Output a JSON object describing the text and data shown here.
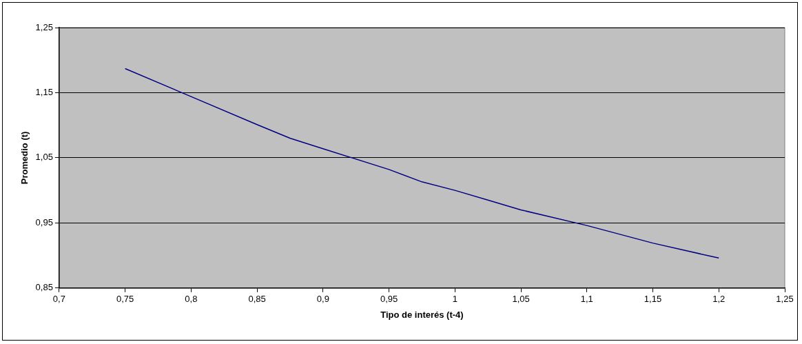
{
  "chart_data": {
    "type": "line",
    "xlabel": "Tipo de interés (t-4)",
    "ylabel": "Promedio (t)",
    "x": [
      0.75,
      0.8,
      0.85,
      0.875,
      0.9,
      0.95,
      0.975,
      1.0,
      1.025,
      1.05,
      1.1,
      1.15,
      1.2
    ],
    "series": [
      {
        "color": "#000080",
        "values": [
          1.187,
          1.144,
          1.101,
          1.08,
          1.064,
          1.032,
          1.013,
          1.0,
          0.985,
          0.97,
          0.946,
          0.919,
          0.896
        ]
      }
    ],
    "xlim": [
      0.7,
      1.25
    ],
    "xticks": [
      {
        "value": 0.7,
        "label": "0,7"
      },
      {
        "value": 0.75,
        "label": "0,75"
      },
      {
        "value": 0.8,
        "label": "0,8"
      },
      {
        "value": 0.85,
        "label": "0,85"
      },
      {
        "value": 0.9,
        "label": "0,9"
      },
      {
        "value": 0.95,
        "label": "0,95"
      },
      {
        "value": 1,
        "label": "1"
      },
      {
        "value": 1.05,
        "label": "1,05"
      },
      {
        "value": 1.1,
        "label": "1,1"
      },
      {
        "value": 1.15,
        "label": "1,15"
      },
      {
        "value": 1.2,
        "label": "1,2"
      },
      {
        "value": 1.25,
        "label": "1,25"
      }
    ],
    "ylim": [
      0.85,
      1.25
    ],
    "yticks": [
      {
        "value": 0.85,
        "label": "0,85"
      },
      {
        "value": 0.95,
        "label": "0,95"
      },
      {
        "value": 1.05,
        "label": "1,05"
      },
      {
        "value": 1.15,
        "label": "1,15"
      },
      {
        "value": 1.25,
        "label": "1,25"
      }
    ],
    "grid": "y",
    "legend": false,
    "marker": "none",
    "line_style": "solid"
  }
}
